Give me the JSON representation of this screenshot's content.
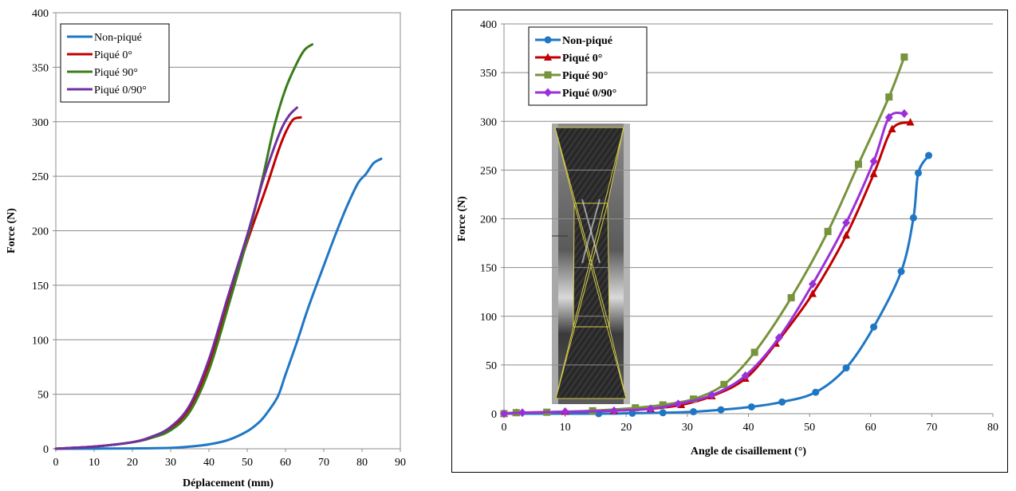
{
  "chart_data": [
    {
      "type": "line",
      "xlabel": "Déplacement (mm)",
      "ylabel": "Force (N)",
      "xlim": [
        0,
        90
      ],
      "ylim": [
        0,
        400
      ],
      "xticks": [
        0,
        10,
        20,
        30,
        40,
        50,
        60,
        70,
        80,
        90
      ],
      "yticks": [
        0,
        50,
        100,
        150,
        200,
        250,
        300,
        350,
        400
      ],
      "grid": "horizontal",
      "legend": "top-left",
      "series": [
        {
          "name": "Non-piqué",
          "color": "#1f77c4",
          "points": [
            [
              0,
              0
            ],
            [
              20,
              0.3
            ],
            [
              30,
              0.8
            ],
            [
              35,
              2
            ],
            [
              40,
              4
            ],
            [
              45,
              8
            ],
            [
              50,
              16
            ],
            [
              53,
              24
            ],
            [
              55,
              32
            ],
            [
              58,
              48
            ],
            [
              60,
              68
            ],
            [
              63,
              98
            ],
            [
              66,
              130
            ],
            [
              70,
              168
            ],
            [
              73,
              196
            ],
            [
              76,
              222
            ],
            [
              79,
              244
            ],
            [
              81,
              252
            ],
            [
              83,
              262
            ],
            [
              85,
              266
            ]
          ]
        },
        {
          "name": "Piqué 0°",
          "color": "#c00000",
          "points": [
            [
              0,
              0
            ],
            [
              10,
              2
            ],
            [
              20,
              6
            ],
            [
              25,
              11
            ],
            [
              30,
              19
            ],
            [
              35,
              38
            ],
            [
              40,
              78
            ],
            [
              45,
              135
            ],
            [
              50,
              190
            ],
            [
              55,
              240
            ],
            [
              58,
              272
            ],
            [
              60,
              290
            ],
            [
              62,
              302
            ],
            [
              64,
              304
            ]
          ]
        },
        {
          "name": "Piqué 90°",
          "color": "#3a7d1a",
          "points": [
            [
              0,
              0
            ],
            [
              10,
              2
            ],
            [
              20,
              6
            ],
            [
              25,
              10
            ],
            [
              30,
              17
            ],
            [
              35,
              34
            ],
            [
              40,
              72
            ],
            [
              45,
              130
            ],
            [
              50,
              192
            ],
            [
              54,
              248
            ],
            [
              57,
              295
            ],
            [
              60,
              330
            ],
            [
              63,
              354
            ],
            [
              65,
              366
            ],
            [
              67,
              371
            ]
          ]
        },
        {
          "name": "Piqué 0/90°",
          "color": "#7030a0",
          "points": [
            [
              0,
              0
            ],
            [
              10,
              2
            ],
            [
              20,
              6
            ],
            [
              25,
              11
            ],
            [
              30,
              20
            ],
            [
              35,
              40
            ],
            [
              40,
              82
            ],
            [
              45,
              140
            ],
            [
              50,
              196
            ],
            [
              54,
              245
            ],
            [
              57,
              276
            ],
            [
              59,
              294
            ],
            [
              61,
              306
            ],
            [
              63,
              313
            ]
          ]
        }
      ]
    },
    {
      "type": "line",
      "xlabel": "Angle de cisaillement (°)",
      "ylabel": "Force (N)",
      "xlim": [
        0,
        80
      ],
      "ylim": [
        0,
        400
      ],
      "xticks": [
        0,
        10,
        20,
        30,
        40,
        50,
        60,
        70,
        80
      ],
      "yticks": [
        0,
        50,
        100,
        150,
        200,
        250,
        300,
        350,
        400
      ],
      "grid": "horizontal",
      "legend": "top-left",
      "inset": "photograph of sheared specimen",
      "series": [
        {
          "name": "Non-piqué",
          "color": "#1f77c4",
          "marker": "circle",
          "points": [
            [
              0,
              0
            ],
            [
              15.5,
              0
            ],
            [
              21,
              0.5
            ],
            [
              26,
              1
            ],
            [
              31,
              2
            ],
            [
              35.5,
              4
            ],
            [
              40.5,
              7
            ],
            [
              45.5,
              12
            ],
            [
              51,
              22
            ],
            [
              56,
              47
            ],
            [
              60.5,
              89
            ],
            [
              65,
              146
            ],
            [
              67,
              201
            ],
            [
              67.8,
              247
            ],
            [
              69.5,
              265
            ]
          ]
        },
        {
          "name": "Piqué 0°",
          "color": "#c00000",
          "marker": "triangle",
          "points": [
            [
              0,
              0
            ],
            [
              2,
              1
            ],
            [
              10,
              2
            ],
            [
              18,
              3
            ],
            [
              24,
              5
            ],
            [
              29,
              9
            ],
            [
              34,
              18
            ],
            [
              39.5,
              36
            ],
            [
              44.5,
              72
            ],
            [
              50.5,
              123
            ],
            [
              56,
              183
            ],
            [
              60.5,
              246
            ],
            [
              63.5,
              292
            ],
            [
              66.5,
              299
            ]
          ]
        },
        {
          "name": "Piqué 90°",
          "color": "#77933c",
          "marker": "square",
          "points": [
            [
              0,
              0
            ],
            [
              2,
              1
            ],
            [
              7,
              1.5
            ],
            [
              14.5,
              3
            ],
            [
              21.5,
              6
            ],
            [
              26,
              9
            ],
            [
              31,
              15
            ],
            [
              36,
              30
            ],
            [
              41,
              63
            ],
            [
              47,
              119
            ],
            [
              53,
              187
            ],
            [
              58,
              256
            ],
            [
              63,
              325
            ],
            [
              65.5,
              366
            ]
          ]
        },
        {
          "name": "Piqué 0/90°",
          "color": "#9b30d9",
          "marker": "diamond",
          "points": [
            [
              0,
              0
            ],
            [
              3,
              1
            ],
            [
              10,
              2
            ],
            [
              18,
              3
            ],
            [
              24,
              5
            ],
            [
              28.5,
              10
            ],
            [
              34,
              19
            ],
            [
              39.5,
              39
            ],
            [
              45,
              78
            ],
            [
              50.5,
              133
            ],
            [
              56,
              196
            ],
            [
              60.5,
              259
            ],
            [
              63,
              304
            ],
            [
              65.5,
              308
            ]
          ]
        }
      ]
    }
  ]
}
